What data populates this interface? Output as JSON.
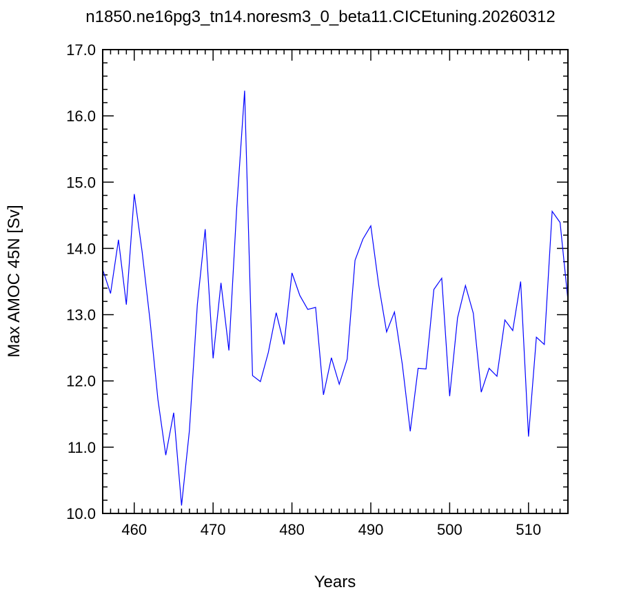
{
  "chart_data": {
    "type": "line",
    "title": "n1850.ne16pg3_tn14.noresm3_0_beta11.CICEtuning.20260312",
    "xlabel": "Years",
    "ylabel": "Max AMOC 45N [Sv]",
    "xlim": [
      456,
      515
    ],
    "ylim": [
      10.0,
      17.0
    ],
    "xticks": [
      460,
      470,
      480,
      490,
      500,
      510
    ],
    "yticks": [
      10.0,
      11.0,
      12.0,
      13.0,
      14.0,
      15.0,
      16.0,
      17.0
    ],
    "xtick_labels": [
      "460",
      "470",
      "480",
      "490",
      "500",
      "510"
    ],
    "ytick_labels": [
      "10.0",
      "11.0",
      "12.0",
      "13.0",
      "14.0",
      "15.0",
      "16.0",
      "17.0"
    ],
    "grid": false,
    "series": [
      {
        "color": "#0000ff",
        "x": [
          456,
          457,
          458,
          459,
          460,
          461,
          462,
          463,
          464,
          465,
          466,
          467,
          468,
          469,
          470,
          471,
          472,
          473,
          474,
          475,
          476,
          477,
          478,
          479,
          480,
          481,
          482,
          483,
          484,
          485,
          486,
          487,
          488,
          489,
          490,
          491,
          492,
          493,
          494,
          495,
          496,
          497,
          498,
          499,
          500,
          501,
          502,
          503,
          504,
          505,
          506,
          507,
          508,
          509,
          510,
          511,
          512,
          513,
          514,
          515
        ],
        "y": [
          13.68,
          13.32,
          14.13,
          13.15,
          14.82,
          13.95,
          12.92,
          11.72,
          10.88,
          11.52,
          10.12,
          11.25,
          13.15,
          14.29,
          12.34,
          13.48,
          12.46,
          14.62,
          16.38,
          12.08,
          11.99,
          12.43,
          13.03,
          12.55,
          13.63,
          13.29,
          13.08,
          13.11,
          11.79,
          12.35,
          11.95,
          12.33,
          13.82,
          14.14,
          14.34,
          13.45,
          12.74,
          13.04,
          12.25,
          11.24,
          12.19,
          12.18,
          13.38,
          13.55,
          11.77,
          12.95,
          13.44,
          13.02,
          11.83,
          12.19,
          12.07,
          12.92,
          12.76,
          13.5,
          11.16,
          12.66,
          12.55,
          14.56,
          14.39,
          13.22
        ]
      }
    ]
  }
}
